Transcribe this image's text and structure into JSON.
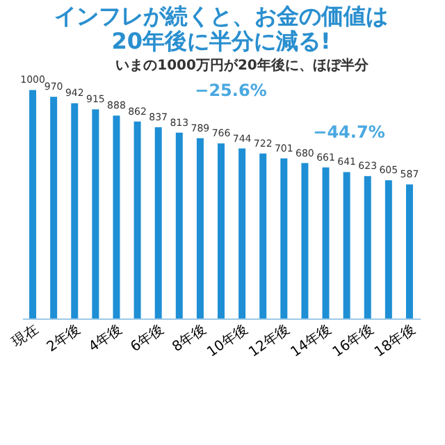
{
  "chart_data": {
    "type": "bar",
    "title": [
      "インフレが続くと、お金の価値は",
      "20年後に半分に減る!"
    ],
    "categories": [
      "現在",
      null,
      "2年後",
      null,
      "4年後",
      null,
      "6年後",
      null,
      "8年後",
      null,
      "10年後",
      null,
      "12年後",
      null,
      "14年後",
      null,
      "16年後",
      null,
      "18年後"
    ],
    "values": [
      1000,
      970,
      942,
      915,
      888,
      862,
      837,
      813,
      789,
      766,
      744,
      722,
      701,
      680,
      661,
      641,
      623,
      605,
      587
    ],
    "color": "#1e8fd5",
    "data_labels": true,
    "tick_labels": "x",
    "grid": false,
    "annotations": [
      "−25.6%",
      "−44.7%",
      "いまの1000万円が20年後に、ほぼ半分"
    ]
  }
}
